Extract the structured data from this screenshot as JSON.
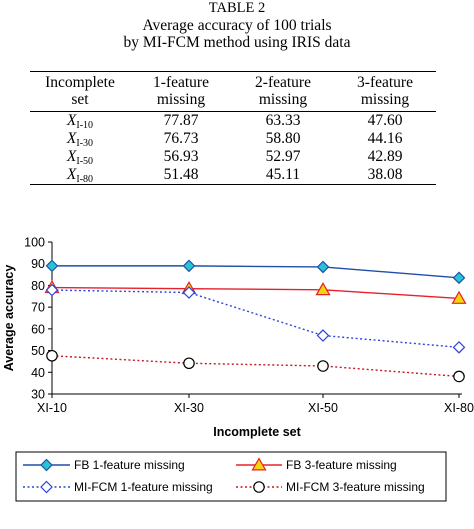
{
  "table": {
    "caption_lines": [
      "TABLE 2",
      "Average accuracy of 100 trials",
      "by MI-FCM method using IRIS data"
    ],
    "headers": [
      [
        "Incomplete",
        "set"
      ],
      [
        "1-feature",
        "missing"
      ],
      [
        "2-feature",
        "missing"
      ],
      [
        "3-feature",
        "missing"
      ]
    ],
    "rows": [
      {
        "set": "X",
        "sub": "I-10",
        "values": [
          "77.87",
          "63.33",
          "47.60"
        ]
      },
      {
        "set": "X",
        "sub": "I-30",
        "values": [
          "76.73",
          "58.80",
          "44.16"
        ]
      },
      {
        "set": "X",
        "sub": "I-50",
        "values": [
          "56.93",
          "52.97",
          "42.89"
        ]
      },
      {
        "set": "X",
        "sub": "I-80",
        "values": [
          "51.48",
          "45.11",
          "38.08"
        ]
      }
    ]
  },
  "chart_data": {
    "type": "line",
    "categories": [
      "XI-10",
      "XI-30",
      "XI-50",
      "XI-80"
    ],
    "xlabel": "Incomplete set",
    "ylabel": "Average accuracy",
    "ylim": [
      30,
      100
    ],
    "yticks": [
      30,
      40,
      50,
      60,
      70,
      80,
      90,
      100
    ],
    "grid": false,
    "legend_position": "bottom",
    "series": [
      {
        "name": "FB 1-feature missing",
        "values": [
          89,
          89,
          88.5,
          83.5
        ],
        "color": "#1f4fa8",
        "fill": "#29c3d6",
        "marker": "diamond",
        "dash": "solid"
      },
      {
        "name": "FB 3-feature missing",
        "values": [
          79,
          78.5,
          78,
          74
        ],
        "color": "#e8202a",
        "fill": "#f5d50a",
        "marker": "triangle",
        "dash": "solid"
      },
      {
        "name": "MI-FCM 1-feature missing",
        "values": [
          77.87,
          76.73,
          56.93,
          51.48
        ],
        "color": "#2b45d8",
        "fill": "#ffffff",
        "marker": "diamond",
        "dash": "dot"
      },
      {
        "name": "MI-FCM 3-feature missing",
        "values": [
          47.6,
          44.16,
          42.89,
          38.08
        ],
        "color": "#c2181e",
        "fill": "#ffffff",
        "marker": "circle",
        "dash": "dot"
      }
    ]
  }
}
